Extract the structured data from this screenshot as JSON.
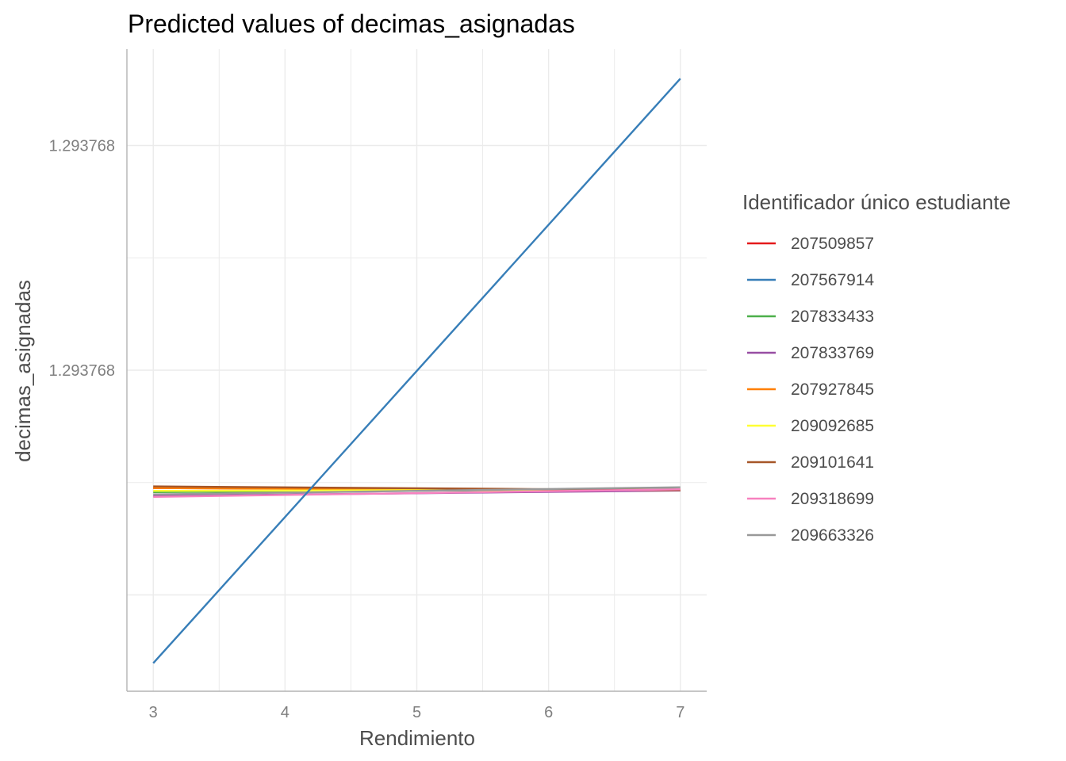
{
  "chart_data": {
    "type": "line",
    "title": "Predicted values of decimas_asignadas",
    "xlabel": "Rendimiento",
    "ylabel": "decimas_asignadas",
    "x_ticks": [
      3,
      4,
      5,
      6,
      7
    ],
    "y_tick_labels": [
      "1.293768",
      "1.293768"
    ],
    "y_ticks_norm": [
      0.5,
      0.85
    ],
    "xlim": [
      2.8,
      7.2
    ],
    "ylim_norm": [
      0,
      1
    ],
    "grid": true,
    "legend_title": "Identificador único estudiante",
    "legend_position": "right",
    "series": [
      {
        "name": "207509857",
        "color": "#E41A1C",
        "x": [
          3,
          7
        ],
        "y": [
          0.3165,
          0.3126
        ]
      },
      {
        "name": "207567914",
        "color": "#377EB8",
        "x": [
          3,
          7
        ],
        "y": [
          0.0437,
          0.9541
        ]
      },
      {
        "name": "207833433",
        "color": "#4DAF4A",
        "x": [
          3,
          7
        ],
        "y": [
          0.3102,
          0.3145
        ]
      },
      {
        "name": "207833769",
        "color": "#984EA3",
        "x": [
          3,
          7
        ],
        "y": [
          0.3041,
          0.3126
        ]
      },
      {
        "name": "207927845",
        "color": "#FF7F00",
        "x": [
          3,
          7
        ],
        "y": [
          0.3165,
          0.3132
        ]
      },
      {
        "name": "209092685",
        "color": "#FFFF33",
        "x": [
          3,
          7
        ],
        "y": [
          0.3121,
          0.3139
        ]
      },
      {
        "name": "209101641",
        "color": "#A65628",
        "x": [
          3,
          7
        ],
        "y": [
          0.319,
          0.3132
        ]
      },
      {
        "name": "209318699",
        "color": "#F781BF",
        "x": [
          3,
          7
        ],
        "y": [
          0.3027,
          0.3145
        ]
      },
      {
        "name": "209663326",
        "color": "#999999",
        "x": [
          3,
          7
        ],
        "y": [
          0.3065,
          0.3177
        ]
      }
    ]
  }
}
